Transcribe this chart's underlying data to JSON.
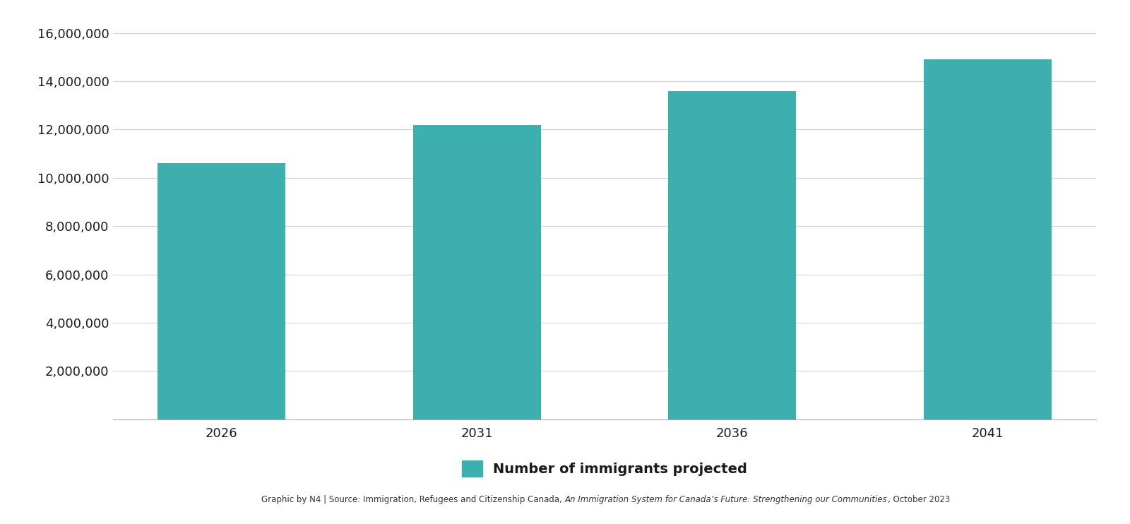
{
  "categories": [
    "2026",
    "2031",
    "2036",
    "2041"
  ],
  "values": [
    10600000,
    12200000,
    13600000,
    14900000
  ],
  "bar_color": "#3DAFAF",
  "background_color": "#ffffff",
  "ylim": [
    0,
    16500000
  ],
  "yticks": [
    2000000,
    4000000,
    6000000,
    8000000,
    10000000,
    12000000,
    14000000,
    16000000
  ],
  "legend_label": "Number of immigrants projected",
  "normal1": "Graphic by N4 | Source: Immigration, Refugees and Citizenship Canada, ",
  "italic_part": "An Immigration System for Canada’s Future: Strengthening our Communities",
  "normal2": ", October 2023",
  "tick_fontsize": 13,
  "legend_fontsize": 14,
  "footer_fontsize": 8.5,
  "bar_width": 0.5,
  "grid_color": "#d0d0d0",
  "axis_color": "#aaaaaa",
  "text_color": "#1a1a1a",
  "footer_color": "#333333"
}
